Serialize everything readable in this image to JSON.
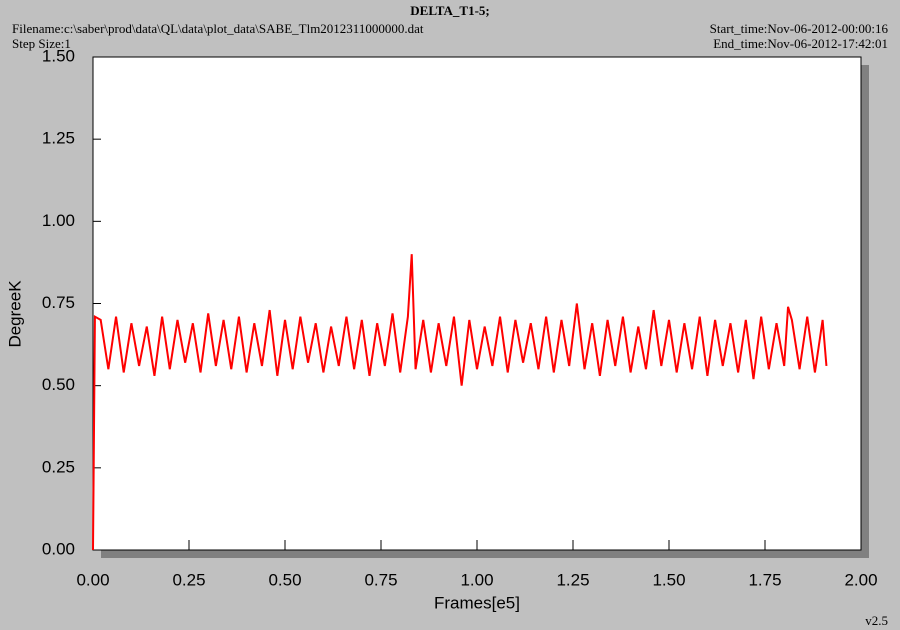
{
  "chart_data": {
    "type": "line",
    "title": "DELTA_T1-5;",
    "filename": "Filename:c:\\saber\\prod\\data\\QL\\data\\plot_data\\SABE_Tlm2012311000000.dat",
    "step_size": "Step Size:1",
    "start_time": "Start_time:Nov-06-2012-00:00:16",
    "end_time": "End_time:Nov-06-2012-17:42:01",
    "version": "v2.5",
    "xlabel": "Frames[e5]",
    "ylabel": "DegreeK",
    "color": "#ff0000",
    "xlim": [
      0,
      2
    ],
    "ylim": [
      0,
      1.5
    ],
    "xticks": [
      {
        "value": 0,
        "label": "0.00"
      },
      {
        "value": 0.25,
        "label": "0.25"
      },
      {
        "value": 0.5,
        "label": "0.50"
      },
      {
        "value": 0.75,
        "label": "0.75"
      },
      {
        "value": 1,
        "label": "1.00"
      },
      {
        "value": 1.25,
        "label": "1.25"
      },
      {
        "value": 1.5,
        "label": "1.50"
      },
      {
        "value": 1.75,
        "label": "1.75"
      },
      {
        "value": 2,
        "label": "2.00"
      }
    ],
    "yticks": [
      {
        "value": 0,
        "label": "0.00"
      },
      {
        "value": 0.25,
        "label": "0.25"
      },
      {
        "value": 0.5,
        "label": "0.50"
      },
      {
        "value": 0.75,
        "label": "0.75"
      },
      {
        "value": 1,
        "label": "1.00"
      },
      {
        "value": 1.25,
        "label": "1.25"
      },
      {
        "value": 1.5,
        "label": "1.50"
      }
    ],
    "x": [
      0,
      0.005,
      0.02,
      0.04,
      0.06,
      0.08,
      0.1,
      0.12,
      0.14,
      0.16,
      0.18,
      0.2,
      0.22,
      0.24,
      0.26,
      0.28,
      0.3,
      0.32,
      0.34,
      0.36,
      0.38,
      0.4,
      0.42,
      0.44,
      0.46,
      0.48,
      0.5,
      0.52,
      0.54,
      0.56,
      0.58,
      0.6,
      0.62,
      0.64,
      0.66,
      0.68,
      0.7,
      0.72,
      0.74,
      0.76,
      0.78,
      0.8,
      0.82,
      0.83,
      0.84,
      0.86,
      0.88,
      0.9,
      0.92,
      0.94,
      0.96,
      0.98,
      1,
      1.02,
      1.04,
      1.06,
      1.08,
      1.1,
      1.12,
      1.14,
      1.16,
      1.18,
      1.2,
      1.22,
      1.24,
      1.26,
      1.28,
      1.3,
      1.32,
      1.34,
      1.36,
      1.38,
      1.4,
      1.42,
      1.44,
      1.46,
      1.48,
      1.5,
      1.52,
      1.54,
      1.56,
      1.58,
      1.6,
      1.62,
      1.64,
      1.66,
      1.68,
      1.7,
      1.72,
      1.74,
      1.76,
      1.78,
      1.8,
      1.81,
      1.82,
      1.84,
      1.86,
      1.88,
      1.9,
      1.91
    ],
    "values": [
      0,
      0.71,
      0.7,
      0.55,
      0.71,
      0.54,
      0.69,
      0.56,
      0.68,
      0.53,
      0.71,
      0.55,
      0.7,
      0.57,
      0.69,
      0.54,
      0.72,
      0.56,
      0.7,
      0.55,
      0.71,
      0.54,
      0.69,
      0.56,
      0.73,
      0.53,
      0.7,
      0.55,
      0.71,
      0.57,
      0.69,
      0.54,
      0.68,
      0.56,
      0.71,
      0.55,
      0.7,
      0.53,
      0.69,
      0.56,
      0.72,
      0.54,
      0.71,
      0.9,
      0.55,
      0.7,
      0.54,
      0.69,
      0.56,
      0.71,
      0.5,
      0.7,
      0.55,
      0.68,
      0.56,
      0.71,
      0.54,
      0.7,
      0.57,
      0.69,
      0.55,
      0.71,
      0.54,
      0.7,
      0.56,
      0.75,
      0.55,
      0.69,
      0.53,
      0.7,
      0.56,
      0.71,
      0.54,
      0.68,
      0.55,
      0.73,
      0.56,
      0.7,
      0.54,
      0.69,
      0.55,
      0.71,
      0.53,
      0.7,
      0.56,
      0.69,
      0.54,
      0.7,
      0.52,
      0.71,
      0.55,
      0.69,
      0.56,
      0.74,
      0.7,
      0.55,
      0.71,
      0.54,
      0.7,
      0.56
    ]
  }
}
